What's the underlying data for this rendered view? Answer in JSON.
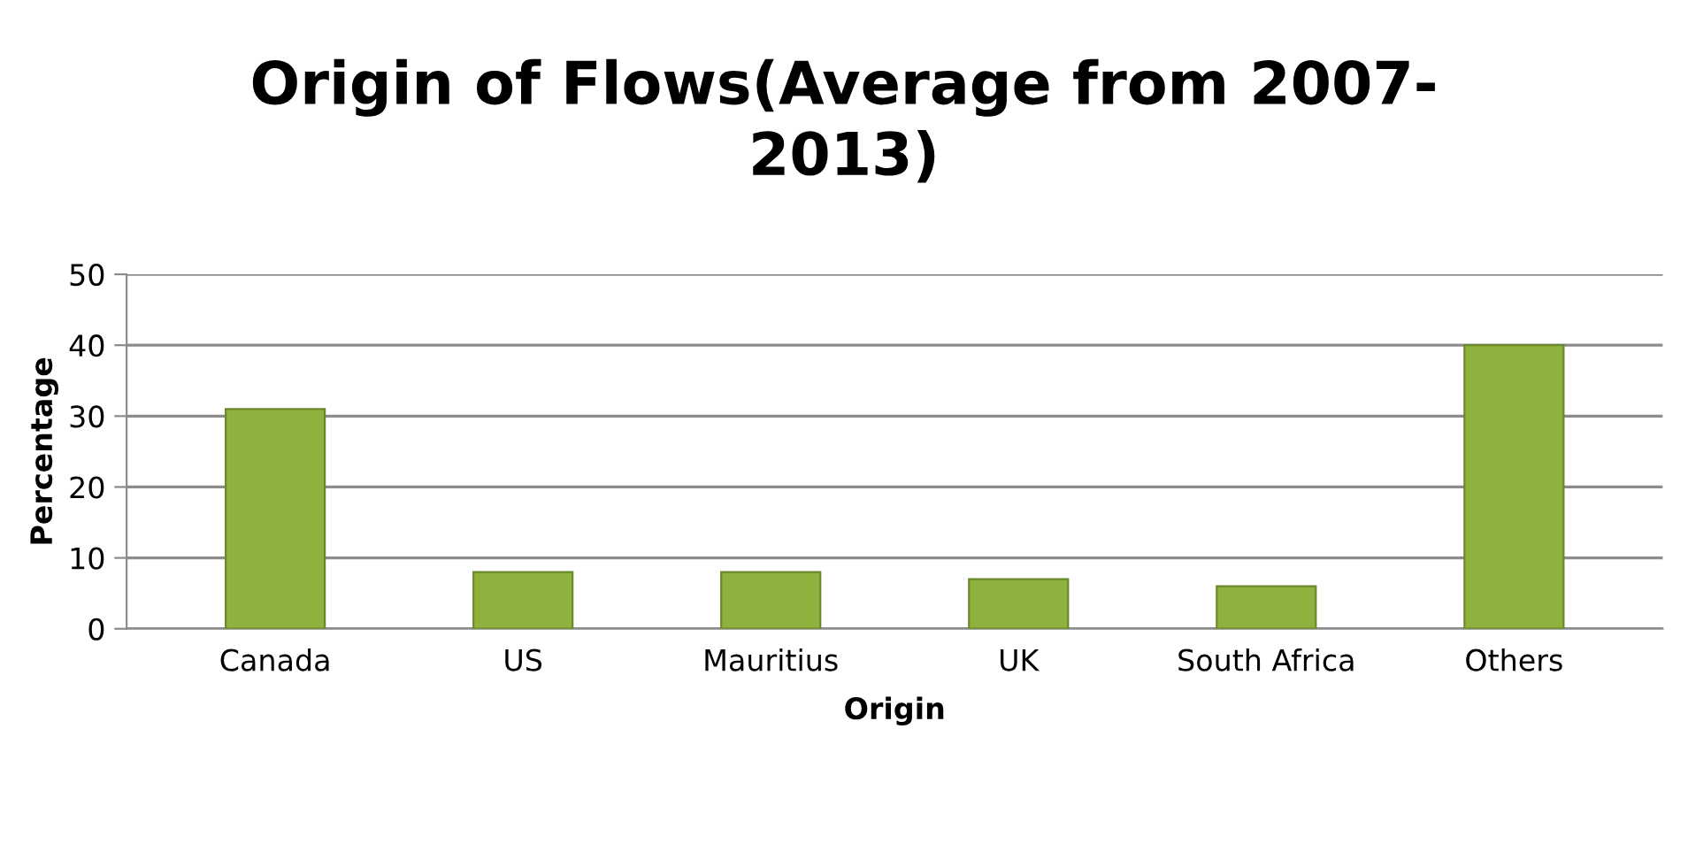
{
  "chart_data": {
    "type": "bar",
    "title": "Origin of Flows(Average from 2007-\n2013)",
    "xlabel": "Origin",
    "ylabel": "Percentage",
    "categories": [
      "Canada",
      "US",
      "Mauritius",
      "UK",
      "South Africa",
      "Others"
    ],
    "values": [
      31,
      8,
      8,
      7,
      6,
      40
    ],
    "color": "#8fb23e",
    "ylim": [
      0,
      50
    ],
    "yticks": [
      0,
      10,
      20,
      30,
      40,
      50
    ],
    "grid": "y"
  }
}
